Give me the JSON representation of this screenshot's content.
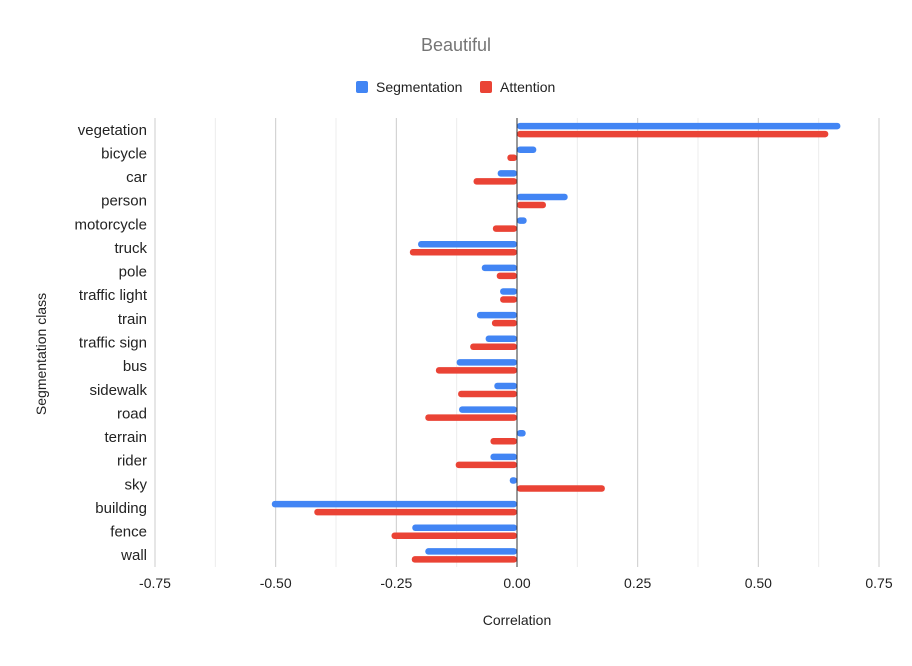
{
  "chart_data": {
    "type": "bar",
    "orientation": "horizontal",
    "title": "Beautiful",
    "xlabel": "Correlation",
    "ylabel": "Segmentation class",
    "xlim": [
      -0.75,
      0.75
    ],
    "x_ticks": [
      -0.75,
      -0.5,
      -0.25,
      0.0,
      0.25,
      0.5,
      0.75
    ],
    "x_tick_labels": [
      "-0.75",
      "-0.50",
      "-0.25",
      "0.00",
      "0.25",
      "0.50",
      "0.75"
    ],
    "grid": true,
    "legend_position": "top",
    "categories": [
      "vegetation",
      "bicycle",
      "car",
      "person",
      "motorcycle",
      "truck",
      "pole",
      "traffic light",
      "train",
      "traffic sign",
      "bus",
      "sidewalk",
      "road",
      "terrain",
      "rider",
      "sky",
      "building",
      "fence",
      "wall"
    ],
    "series": [
      {
        "name": "Segmentation",
        "color": "#4285f4",
        "values": [
          0.67,
          0.04,
          -0.04,
          0.105,
          0.02,
          -0.205,
          -0.073,
          -0.035,
          -0.083,
          -0.065,
          -0.125,
          -0.047,
          -0.12,
          0.018,
          -0.055,
          -0.015,
          -0.508,
          -0.217,
          -0.19
        ]
      },
      {
        "name": "Attention",
        "color": "#ea4335",
        "values": [
          0.645,
          -0.02,
          -0.09,
          0.06,
          -0.05,
          -0.222,
          -0.042,
          -0.035,
          -0.052,
          -0.097,
          -0.168,
          -0.122,
          -0.19,
          -0.055,
          -0.127,
          0.182,
          -0.42,
          -0.26,
          -0.218
        ]
      }
    ]
  }
}
